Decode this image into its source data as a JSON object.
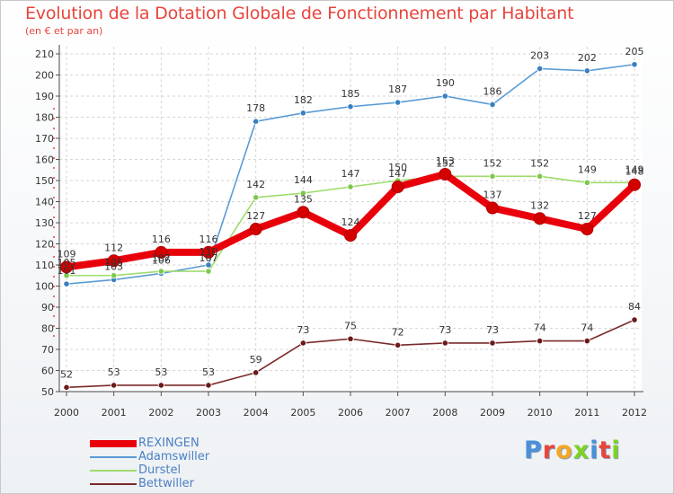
{
  "header": {
    "title": "Evolution de la Dotation Globale de Fonctionnement par Habitant",
    "subtitle": "(en € et par an)"
  },
  "logo": {
    "text": "Proxiti",
    "colors": [
      "#4a90d9",
      "#e8453c",
      "#f5a623",
      "#7ed321",
      "#4a90d9",
      "#e8453c",
      "#7ed321"
    ]
  },
  "chart_data": {
    "type": "line",
    "title": "Evolution de la Dotation Globale de Fonctionnement par Habitant",
    "subtitle": "(en € et par an)",
    "xlabel": "",
    "ylabel": "",
    "x": [
      "2000",
      "2001",
      "2002",
      "2003",
      "2004",
      "2005",
      "2006",
      "2007",
      "2008",
      "2009",
      "2010",
      "2011",
      "2012"
    ],
    "ylim": [
      50,
      210
    ],
    "yticks": [
      50,
      60,
      70,
      80,
      90,
      100,
      110,
      120,
      130,
      140,
      150,
      160,
      170,
      180,
      190,
      200,
      210
    ],
    "grid": true,
    "legend_position": "bottom-left",
    "series": [
      {
        "name": "Bettwiller",
        "color": "#7a2a2a",
        "marker_color": "#6b1a1a",
        "values": [
          52,
          53,
          53,
          53,
          59,
          73,
          75,
          72,
          73,
          73,
          74,
          74,
          84
        ],
        "labels": [
          "52",
          "53",
          "53",
          "53",
          "59",
          "73",
          "75",
          "72",
          "73",
          "73",
          "74",
          "74",
          "84"
        ]
      },
      {
        "name": "Adamswiller",
        "color": "#5a9bd5",
        "marker_color": "#3a7fc0",
        "values": [
          101,
          103,
          106,
          110,
          178,
          182,
          185,
          187,
          190,
          186,
          203,
          202,
          205
        ],
        "labels": [
          "101",
          "103",
          "106",
          "110",
          "178",
          "182",
          "185",
          "187",
          "190",
          "186",
          "203",
          "202",
          "205"
        ]
      },
      {
        "name": "Durstel",
        "color": "#9edc6e",
        "marker_color": "#7cc84a",
        "values": [
          105,
          105,
          107,
          107,
          142,
          144,
          147,
          150,
          152,
          152,
          152,
          149,
          149
        ],
        "labels": [
          "105",
          "105",
          "107",
          "107",
          "142",
          "144",
          "147",
          "150",
          "152",
          "152",
          "152",
          "149",
          "149"
        ]
      },
      {
        "name": "REXINGEN",
        "color": "#e8000b",
        "marker_color": "#d40000",
        "values": [
          109,
          112,
          116,
          116,
          127,
          135,
          124,
          147,
          153,
          137,
          132,
          127,
          148
        ],
        "labels": [
          "109",
          "112",
          "116",
          "116",
          "127",
          "135",
          "124",
          "147",
          "153",
          "137",
          "132",
          "127",
          "148"
        ]
      }
    ]
  },
  "legend": {
    "items": [
      {
        "label": "REXINGEN",
        "color": "#e8000b",
        "thickness": 8
      },
      {
        "label": "Adamswiller",
        "color": "#5a9bd5",
        "thickness": 2
      },
      {
        "label": "Durstel",
        "color": "#9edc6e",
        "thickness": 2
      },
      {
        "label": "Bettwiller",
        "color": "#7a2a2a",
        "thickness": 2
      }
    ]
  }
}
